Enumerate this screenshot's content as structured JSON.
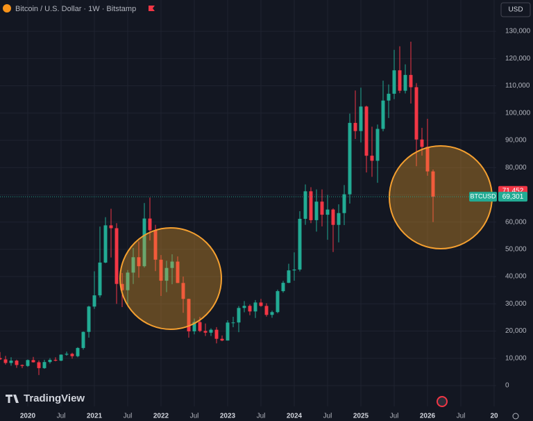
{
  "chart_data": {
    "type": "candlestick",
    "title": "Bitcoin / U.S. Dollar · 1W · Bitstamp",
    "currency": "USD",
    "brand": "TradingView",
    "up_color": "#22ab94",
    "down_color": "#f23645",
    "grid": true,
    "x": [
      "2019-08",
      "2019-09",
      "2019-10",
      "2019-11",
      "2019-12",
      "2020-01",
      "2020-02",
      "2020-03",
      "2020-04",
      "2020-05",
      "2020-06",
      "2020-07",
      "2020-08",
      "2020-09",
      "2020-10",
      "2020-11",
      "2020-12",
      "2021-01",
      "2021-02",
      "2021-03",
      "2021-04",
      "2021-05",
      "2021-06",
      "2021-07",
      "2021-08",
      "2021-09",
      "2021-10",
      "2021-11",
      "2021-12",
      "2022-01",
      "2022-02",
      "2022-03",
      "2022-04",
      "2022-05",
      "2022-06",
      "2022-07",
      "2022-08",
      "2022-09",
      "2022-10",
      "2022-11",
      "2022-12",
      "2023-01",
      "2023-02",
      "2023-03",
      "2023-04",
      "2023-05",
      "2023-06",
      "2023-07",
      "2023-08",
      "2023-09",
      "2023-10",
      "2023-11",
      "2023-12",
      "2024-01",
      "2024-02",
      "2024-03",
      "2024-04",
      "2024-05",
      "2024-06",
      "2024-07",
      "2024-08",
      "2024-09",
      "2024-10",
      "2024-11",
      "2024-12",
      "2025-01",
      "2025-02",
      "2025-03",
      "2025-04",
      "2025-05",
      "2025-06",
      "2025-07",
      "2025-08",
      "2025-09",
      "2025-10",
      "2025-11",
      "2025-12",
      "2026-01",
      "2026-02"
    ],
    "open": [
      10100,
      9600,
      8300,
      9150,
      7550,
      7200,
      9350,
      8550,
      6400,
      8630,
      9450,
      9140,
      11350,
      11650,
      10780,
      13790,
      19700,
      28990,
      33110,
      45140,
      58800,
      57750,
      37300,
      35000,
      41460,
      47100,
      43800,
      61300,
      57000,
      46200,
      38480,
      43160,
      45500,
      37650,
      31800,
      19900,
      23300,
      20050,
      19420,
      20490,
      17160,
      16540,
      23120,
      23150,
      28480,
      29250,
      27200,
      30480,
      29230,
      25940,
      26960,
      34650,
      37700,
      42270,
      42580,
      61200,
      71300,
      60700,
      67500,
      62700,
      64600,
      58970,
      63300,
      70200,
      96400,
      93400,
      102400,
      84350,
      82500,
      94200,
      104600,
      107100,
      115700,
      108200,
      114000,
      109500,
      90300,
      87600,
      78600
    ],
    "high": [
      12300,
      10900,
      10400,
      9500,
      7750,
      9600,
      10500,
      9200,
      9450,
      10070,
      10400,
      11450,
      12470,
      12060,
      14100,
      19850,
      29300,
      41950,
      58350,
      61780,
      64900,
      59600,
      41300,
      42400,
      50500,
      52900,
      67000,
      69000,
      59000,
      47900,
      45800,
      48200,
      47400,
      40000,
      31900,
      24600,
      25200,
      22800,
      21000,
      21450,
      18400,
      23950,
      25250,
      29200,
      31000,
      29800,
      31400,
      31800,
      30200,
      27500,
      35200,
      38400,
      44700,
      48900,
      64000,
      73800,
      72800,
      72000,
      72000,
      70000,
      65000,
      66500,
      73600,
      99800,
      108300,
      109300,
      102700,
      95000,
      95800,
      111900,
      110500,
      123200,
      124500,
      117900,
      126200,
      111000,
      94600,
      97900,
      79300
    ],
    "low": [
      9400,
      7700,
      7300,
      6500,
      6400,
      6850,
      8450,
      3850,
      6150,
      8100,
      8900,
      8970,
      10950,
      9880,
      10380,
      13200,
      17600,
      28130,
      32300,
      44900,
      47000,
      30000,
      28800,
      29300,
      37300,
      39600,
      43300,
      53250,
      42000,
      32900,
      34300,
      37200,
      37600,
      26700,
      17600,
      18800,
      19600,
      18200,
      18200,
      15500,
      16300,
      16500,
      21400,
      19600,
      26900,
      25800,
      24800,
      28900,
      25300,
      24900,
      26550,
      34100,
      37600,
      38500,
      41900,
      59000,
      59600,
      56500,
      58400,
      53500,
      49000,
      52550,
      58900,
      66800,
      90500,
      89200,
      78200,
      76600,
      74400,
      93300,
      98200,
      105100,
      107300,
      107200,
      103500,
      80500,
      84400,
      77000,
      60000
    ],
    "close": [
      9600,
      8300,
      9150,
      7550,
      7200,
      9350,
      8550,
      6400,
      8630,
      9450,
      9140,
      11350,
      11650,
      10780,
      13790,
      19700,
      28990,
      33110,
      45140,
      58800,
      57750,
      37300,
      35000,
      41460,
      47100,
      43800,
      61300,
      57000,
      46200,
      38480,
      43160,
      45500,
      37650,
      31800,
      19900,
      23300,
      20050,
      19420,
      20490,
      17160,
      16540,
      23120,
      23150,
      28480,
      29250,
      27200,
      30480,
      29230,
      25940,
      26960,
      34650,
      37700,
      42270,
      42580,
      61200,
      71300,
      60700,
      67500,
      62700,
      64600,
      58970,
      63300,
      70200,
      96400,
      93400,
      102400,
      84350,
      82500,
      94200,
      104600,
      107100,
      115700,
      108200,
      114000,
      109500,
      90300,
      87600,
      78600,
      69301
    ],
    "xlim": [
      "2019-08",
      "2027-01"
    ],
    "xticks": [
      {
        "value": "2020-01",
        "label": "2020"
      },
      {
        "value": "2020-07",
        "label": "Jul"
      },
      {
        "value": "2021-01",
        "label": "2021"
      },
      {
        "value": "2021-07",
        "label": "Jul"
      },
      {
        "value": "2022-01",
        "label": "2022"
      },
      {
        "value": "2022-07",
        "label": "Jul"
      },
      {
        "value": "2023-01",
        "label": "2023"
      },
      {
        "value": "2023-07",
        "label": "Jul"
      },
      {
        "value": "2024-01",
        "label": "2024"
      },
      {
        "value": "2024-07",
        "label": "Jul"
      },
      {
        "value": "2025-01",
        "label": "2025"
      },
      {
        "value": "2025-07",
        "label": "Jul"
      },
      {
        "value": "2026-01",
        "label": "2026"
      },
      {
        "value": "2026-07",
        "label": "Jul"
      },
      {
        "value": "2027-01",
        "label": "20"
      }
    ],
    "ylim": [
      -7650,
      141500
    ],
    "yticks": [
      0,
      {
        "value": 10000,
        "label": "10,000"
      },
      {
        "value": 20000,
        "label": "20,000"
      },
      {
        "value": 30000,
        "label": "30,000"
      },
      {
        "value": 40000,
        "label": "40,000"
      },
      {
        "value": 50000,
        "label": "50,000"
      },
      {
        "value": 60000,
        "label": "60,000"
      },
      {
        "value": 70000,
        "label": "70,000"
      },
      {
        "value": 80000,
        "label": "80,000"
      },
      {
        "value": 90000,
        "label": "90,000"
      },
      {
        "value": 100000,
        "label": "100,000"
      },
      {
        "value": 110000,
        "label": "110,000"
      },
      {
        "value": 120000,
        "label": "120,000"
      },
      {
        "value": 130000,
        "label": "130,000"
      }
    ],
    "prev_price": {
      "value": 71452,
      "label": "71,452"
    },
    "last_price": {
      "value": 69301,
      "label": "69,301",
      "symbol": "BTCUSD"
    }
  }
}
